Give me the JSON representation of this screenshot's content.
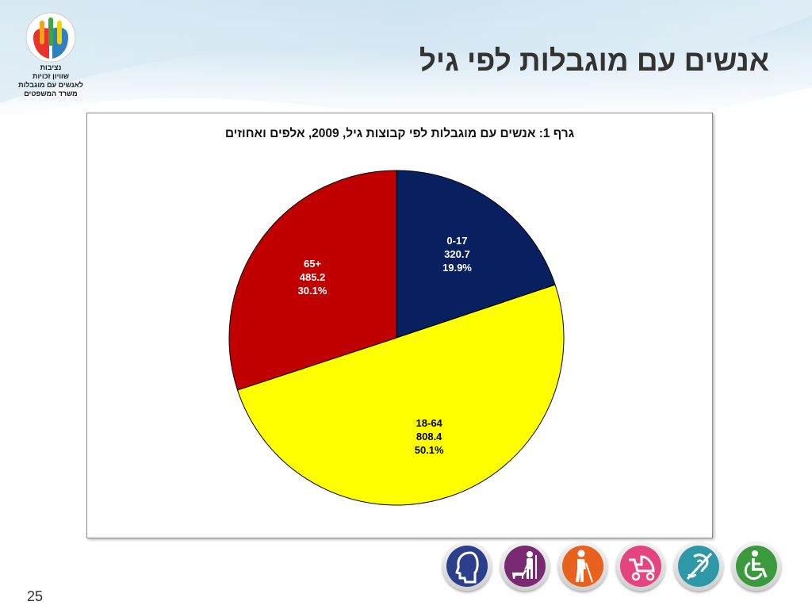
{
  "logo": {
    "lines": [
      "נציבות",
      "שוויון זכויות",
      "לאנשים עם מוגבלות",
      "משרד המשפטים"
    ],
    "colors": [
      "#e8322b",
      "#f7a21b",
      "#3aa54a",
      "#2f7fc1",
      "#f2d400"
    ]
  },
  "slide": {
    "title": "אנשים עם מוגבלות לפי גיל",
    "page_number": "25"
  },
  "chart_data": {
    "type": "pie",
    "title": "גרף 1: אנשים עם מוגבלות לפי קבוצות גיל, 2009, אלפים ואחוזים",
    "slices": [
      {
        "label": "0-17",
        "value": 320.7,
        "value_text": "320.7",
        "percent_text": "19.9%",
        "percent": 19.9,
        "color": "#082060",
        "text_color": "#ffffff"
      },
      {
        "label": "18-64",
        "value": 808.4,
        "value_text": "808.4",
        "percent_text": "50.1%",
        "percent": 50.1,
        "color": "#ffff00",
        "text_color": "#000000"
      },
      {
        "label": "65+",
        "value": 485.2,
        "value_text": "485.2",
        "percent_text": "30.1%",
        "percent": 30.1,
        "color": "#c00000",
        "text_color": "#ffffff"
      }
    ]
  },
  "icons": [
    {
      "name": "head-profile-icon",
      "color": "#2c3f8c"
    },
    {
      "name": "guide-dog-icon",
      "color": "#7a2a73"
    },
    {
      "name": "blind-cane-icon",
      "color": "#e8621e"
    },
    {
      "name": "stroller-icon",
      "color": "#e5447f"
    },
    {
      "name": "hearing-impaired-icon",
      "color": "#2f98a6"
    },
    {
      "name": "wheelchair-icon",
      "color": "#3a9a3d"
    }
  ]
}
